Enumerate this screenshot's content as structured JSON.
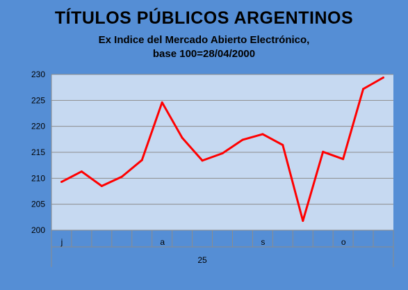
{
  "chart_data": {
    "type": "line",
    "title": "TÍTULOS PÚBLICOS ARGENTINOS",
    "subtitle_lines": [
      "Ex Indice del Mercado Abierto Electrónico,",
      "base 100=28/04/2000"
    ],
    "xlabel": "",
    "ylabel": "",
    "ylim": [
      200,
      230
    ],
    "yticks": [
      200,
      205,
      210,
      215,
      220,
      225,
      230
    ],
    "grid": true,
    "x_labels": [
      "j",
      "",
      "",
      "",
      "",
      "a",
      "",
      "",
      "",
      "",
      "s",
      "",
      "",
      "",
      "o",
      "",
      ""
    ],
    "year_label": "25",
    "series": [
      {
        "color": "#ff0000",
        "values": [
          209.3,
          211.3,
          208.5,
          210.3,
          213.5,
          224.6,
          217.8,
          213.4,
          214.8,
          217.4,
          218.5,
          216.4,
          201.8,
          215.1,
          213.7,
          227.2,
          229.4
        ]
      }
    ]
  }
}
